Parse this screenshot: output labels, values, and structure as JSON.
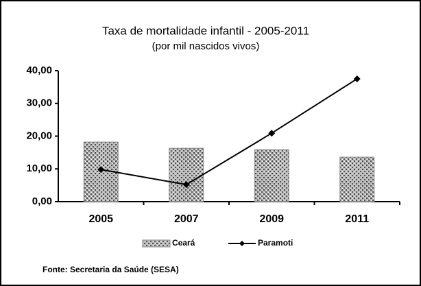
{
  "chart_data": {
    "type": "bar",
    "title": "Taxa de mortalidade infantil - 2005-2011",
    "subtitle": "(por mil nascidos vivos)",
    "categories": [
      "2005",
      "2007",
      "2009",
      "2011"
    ],
    "series": [
      {
        "name": "Ceará",
        "color": "#8a8a8a",
        "values": [
          18.2,
          16.3,
          15.9,
          13.6
        ]
      },
      {
        "name": "Paramoti",
        "type": "line",
        "color": "#000000",
        "values": [
          9.8,
          5.2,
          20.9,
          37.5
        ]
      }
    ],
    "ylim": [
      0,
      40
    ],
    "yticks": [
      {
        "value": 0,
        "label": "0,00"
      },
      {
        "value": 10,
        "label": "10,00"
      },
      {
        "value": 20,
        "label": "20,00"
      },
      {
        "value": 30,
        "label": "30,00"
      },
      {
        "value": 40,
        "label": "40,00"
      }
    ],
    "legend": "bottom",
    "source": "Fonte: Secretaria da Saúde (SESA)"
  }
}
